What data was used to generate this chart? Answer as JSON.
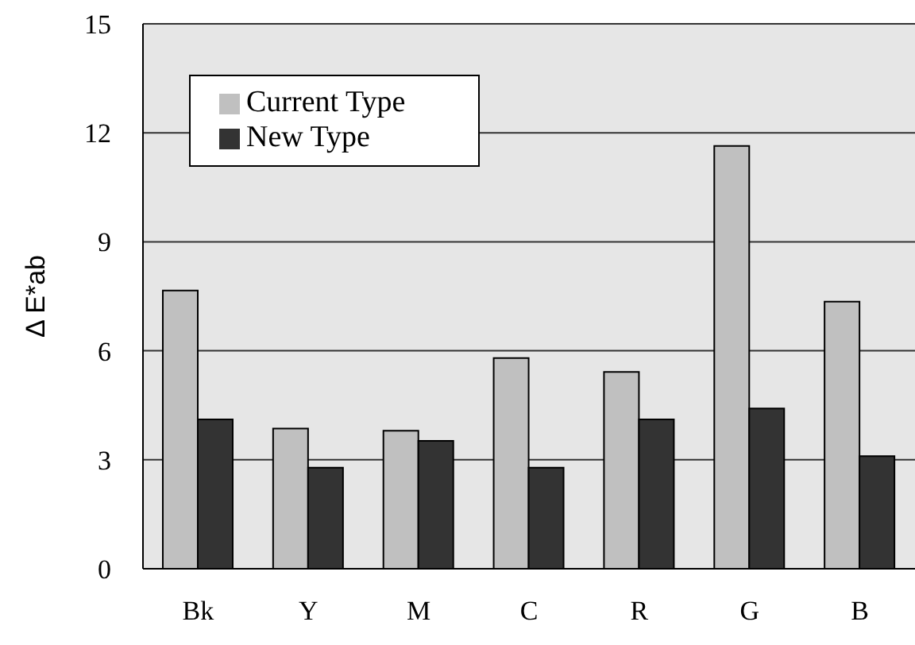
{
  "chart_data": {
    "type": "bar",
    "ylabel": "Δ E*ab",
    "categories": [
      "Bk",
      "Y",
      "M",
      "C",
      "R",
      "G",
      "B"
    ],
    "series": [
      {
        "name": "Current Type",
        "color": "#c0c0c0",
        "values": [
          7.66,
          3.86,
          3.8,
          5.8,
          5.42,
          11.64,
          7.35
        ]
      },
      {
        "name": "New Type",
        "color": "#333333",
        "values": [
          4.11,
          2.78,
          3.52,
          2.78,
          4.11,
          4.41,
          3.1
        ]
      }
    ],
    "ylim": [
      0,
      15
    ],
    "yticks": [
      0,
      3,
      6,
      9,
      12,
      15
    ],
    "grid": "y",
    "legend": "top left"
  }
}
